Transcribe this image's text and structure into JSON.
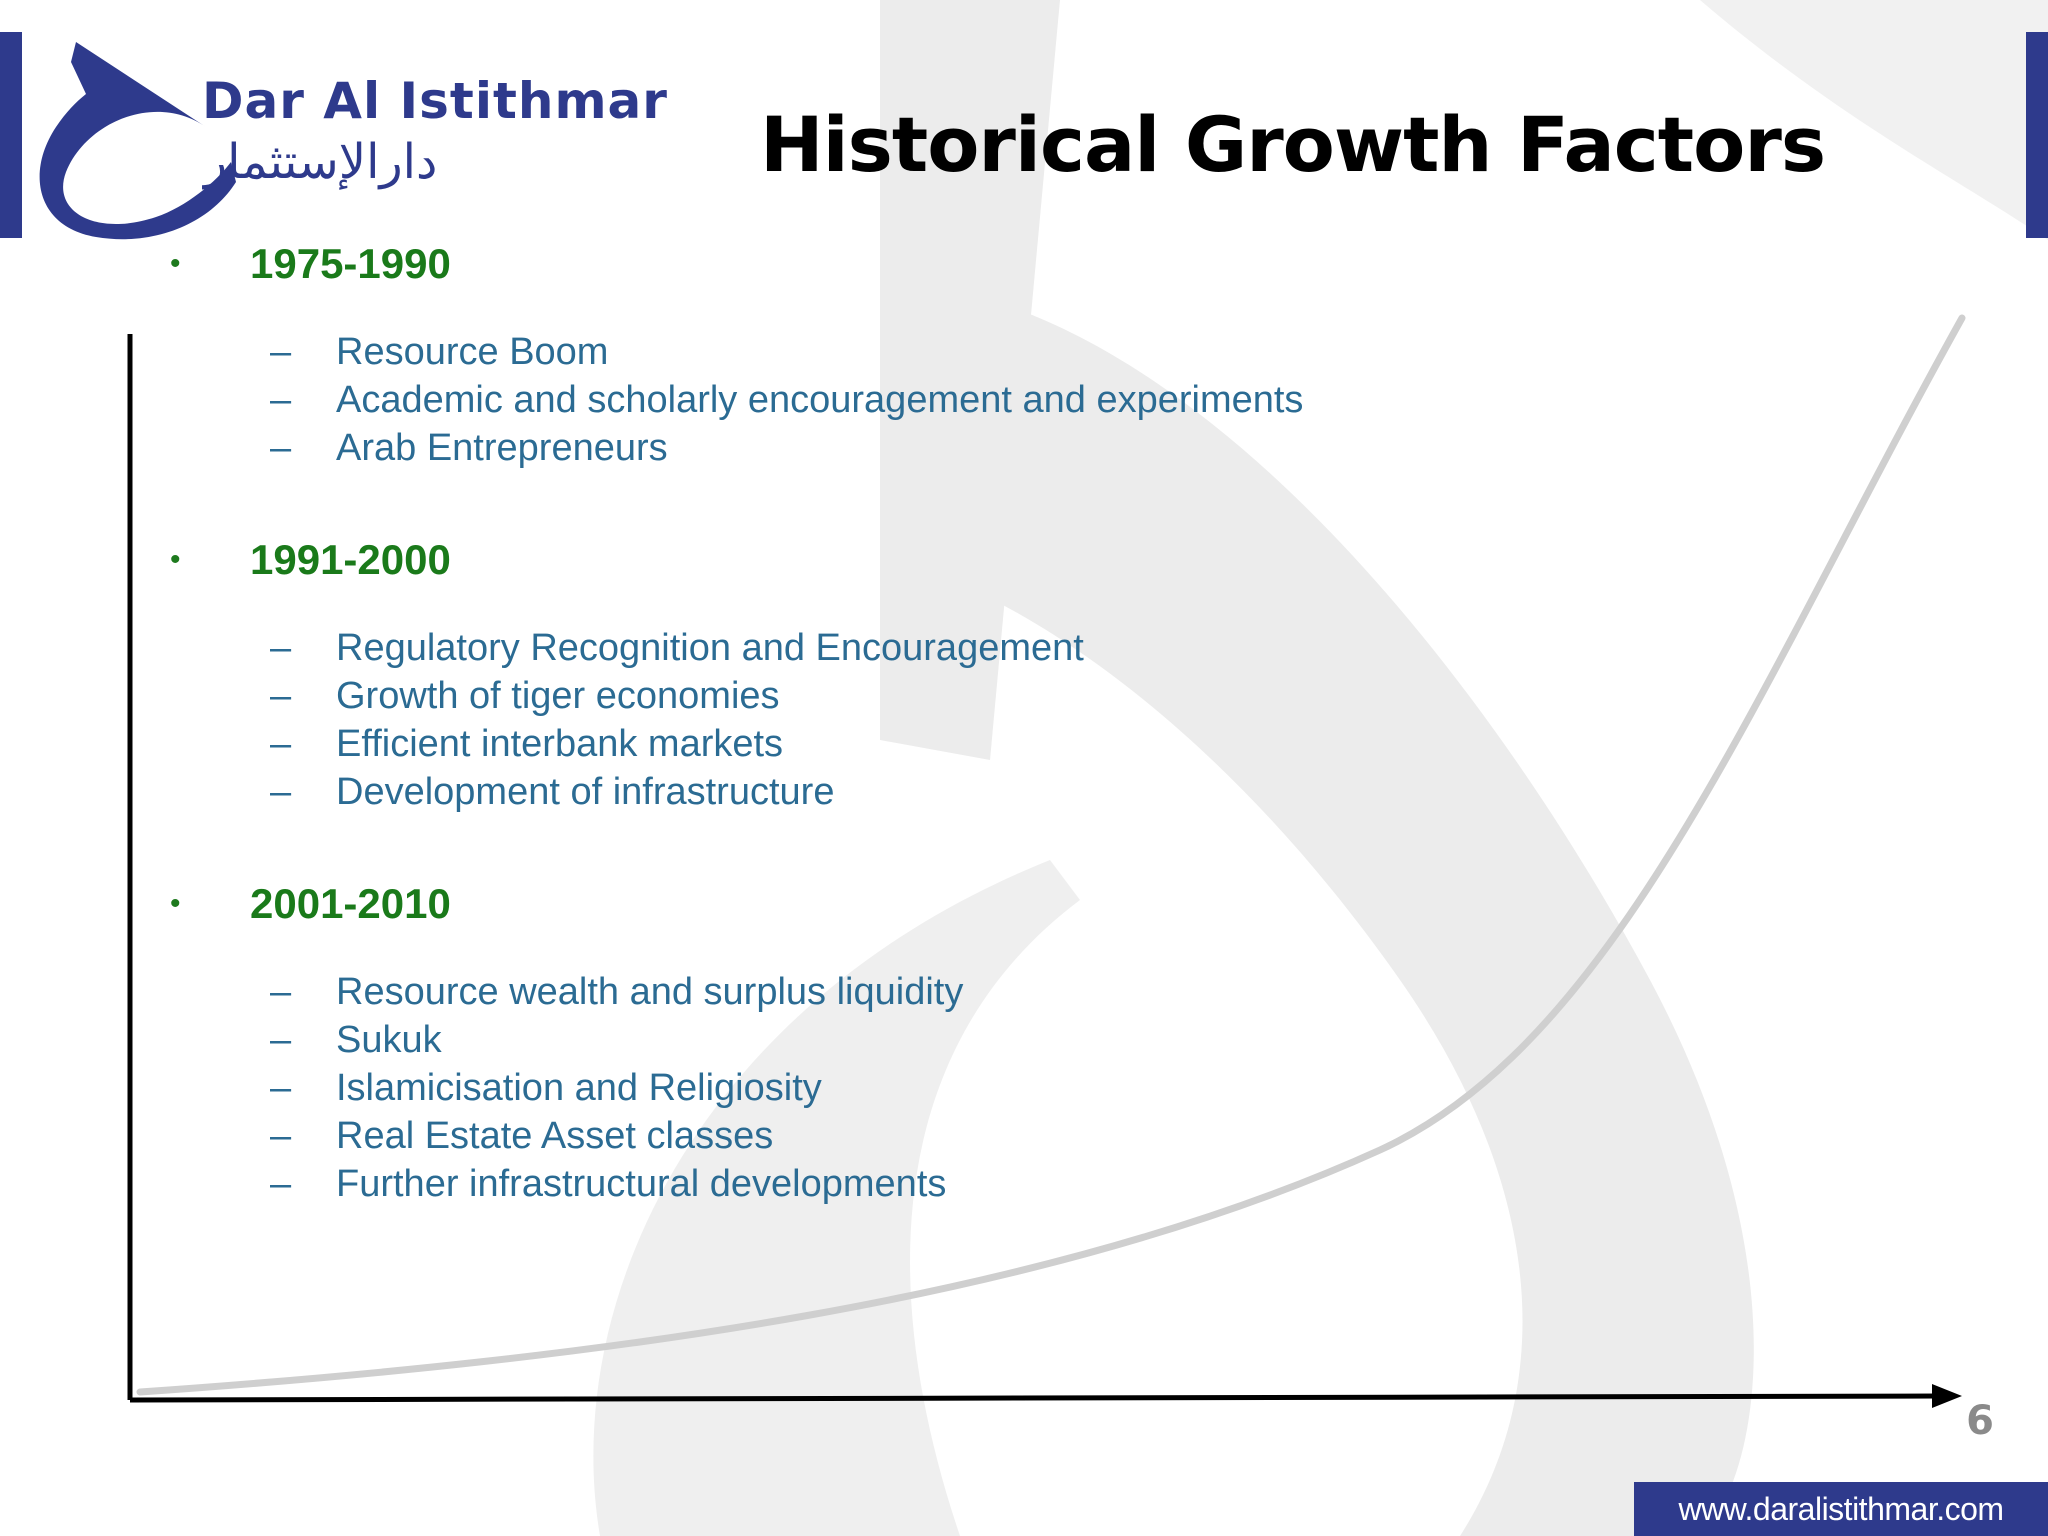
{
  "brand": {
    "name_en": "Dar Al Istithmar",
    "name_ar": "دارالإستثمار",
    "color": "#2e3a8c"
  },
  "slide": {
    "title": "Historical Growth Factors",
    "page_number": "6",
    "footer_url": "www.daralistithmar.com"
  },
  "periods": [
    {
      "label": "1975-1990",
      "factors": [
        "Resource Boom",
        "Academic and scholarly encouragement and experiments",
        "Arab Entrepreneurs"
      ]
    },
    {
      "label": "1991-2000",
      "factors": [
        "Regulatory Recognition and Encouragement",
        "Growth of tiger economies",
        "Efficient interbank markets",
        "Development of infrastructure"
      ]
    },
    {
      "label": "2001-2010",
      "factors": [
        "Resource wealth and surplus liquidity",
        "Sukuk",
        "Islamicisation and Religiosity",
        "Real Estate Asset classes",
        "Further infrastructural developments"
      ]
    }
  ],
  "colors": {
    "period_label": "#1a7a1a",
    "factor_text": "#2b6b93",
    "watermark": "#e9e9e9"
  }
}
